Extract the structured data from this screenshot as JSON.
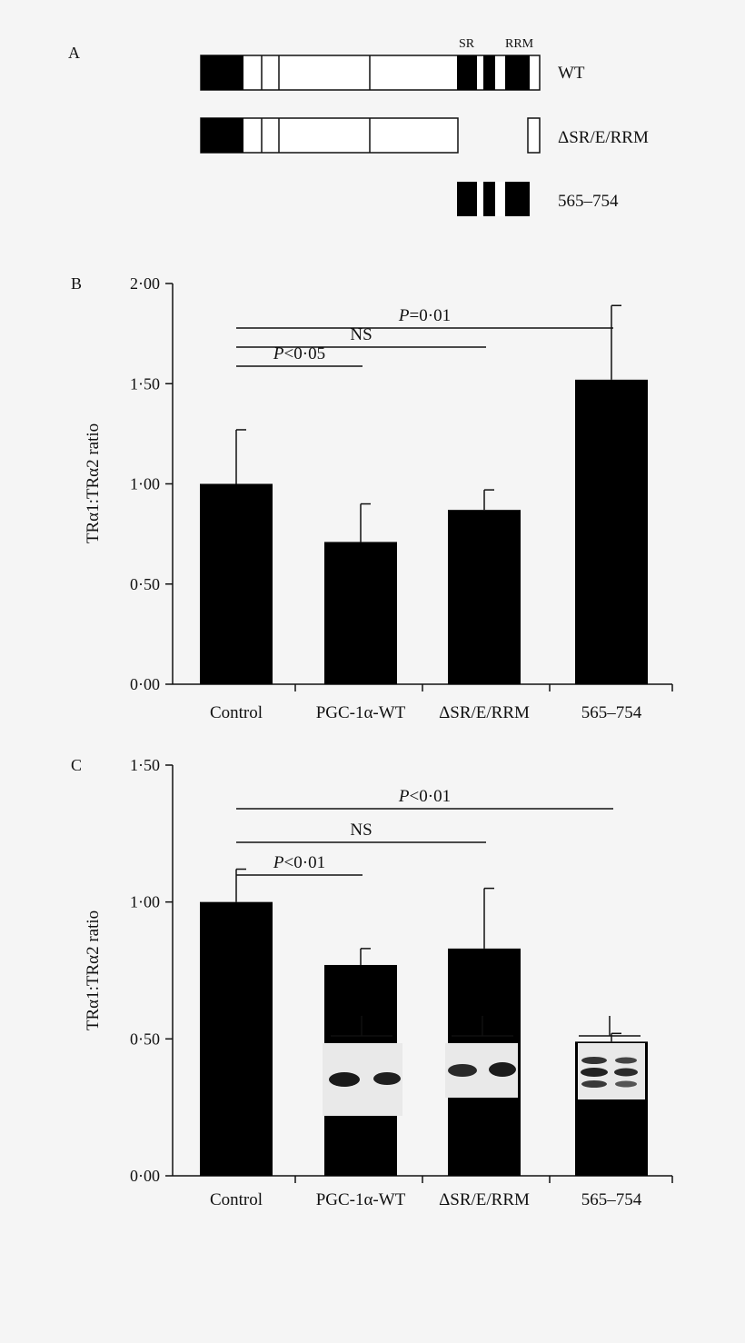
{
  "colors": {
    "background": "#f5f5f5",
    "ink": "#111111",
    "bar": "#000000"
  },
  "panel_a": {
    "label": "A",
    "domain_labels": {
      "sr": "SR",
      "rrm": "RRM"
    },
    "constructs": [
      {
        "name": "WT"
      },
      {
        "name": "ΔSR/E/RRM"
      },
      {
        "name": "565–754"
      }
    ]
  },
  "chart_data": [
    {
      "type": "bar",
      "panel": "B",
      "categories": [
        "Control",
        "PGC-1α-WT",
        "ΔSR/E/RRM",
        "565–754"
      ],
      "values": [
        1.0,
        0.71,
        0.87,
        1.52
      ],
      "errors": [
        0.27,
        0.19,
        0.1,
        0.37
      ],
      "ylabel": "TRα1:TRα2 ratio",
      "ylim": [
        0,
        2.0
      ],
      "ticks": [
        "0·00",
        "0·50",
        "1·00",
        "1·50",
        "2·00"
      ],
      "tick_values": [
        0,
        0.5,
        1.0,
        1.5,
        2.0
      ],
      "comparisons": [
        {
          "from": 0,
          "to": 3,
          "p_symbol": "P",
          "p_rest": "=0·01"
        },
        {
          "from": 0,
          "to": 2,
          "p_symbol": "",
          "p_rest": "NS"
        },
        {
          "from": 0,
          "to": 1,
          "p_symbol": "P",
          "p_rest": "<0·05"
        }
      ]
    },
    {
      "type": "bar",
      "panel": "C",
      "categories": [
        "Control",
        "PGC-1α-WT",
        "ΔSR/E/RRM",
        "565–754"
      ],
      "values": [
        1.0,
        0.77,
        0.83,
        0.49
      ],
      "errors": [
        0.12,
        0.06,
        0.22,
        0.03
      ],
      "ylabel": "TRα1:TRα2 ratio",
      "ylim": [
        0,
        1.5
      ],
      "ticks": [
        "0·00",
        "0·50",
        "1·00",
        "1·50"
      ],
      "tick_values": [
        0,
        0.5,
        1.0,
        1.5
      ],
      "comparisons": [
        {
          "from": 0,
          "to": 3,
          "p_symbol": "P",
          "p_rest": "<0·01"
        },
        {
          "from": 0,
          "to": 2,
          "p_symbol": "",
          "p_rest": "NS"
        },
        {
          "from": 0,
          "to": 1,
          "p_symbol": "P",
          "p_rest": "<0·01"
        }
      ]
    }
  ],
  "western_blot": {
    "lanes": [
      "PGC-1α-WT",
      "ΔSR/E/RRM",
      "565–754"
    ]
  }
}
